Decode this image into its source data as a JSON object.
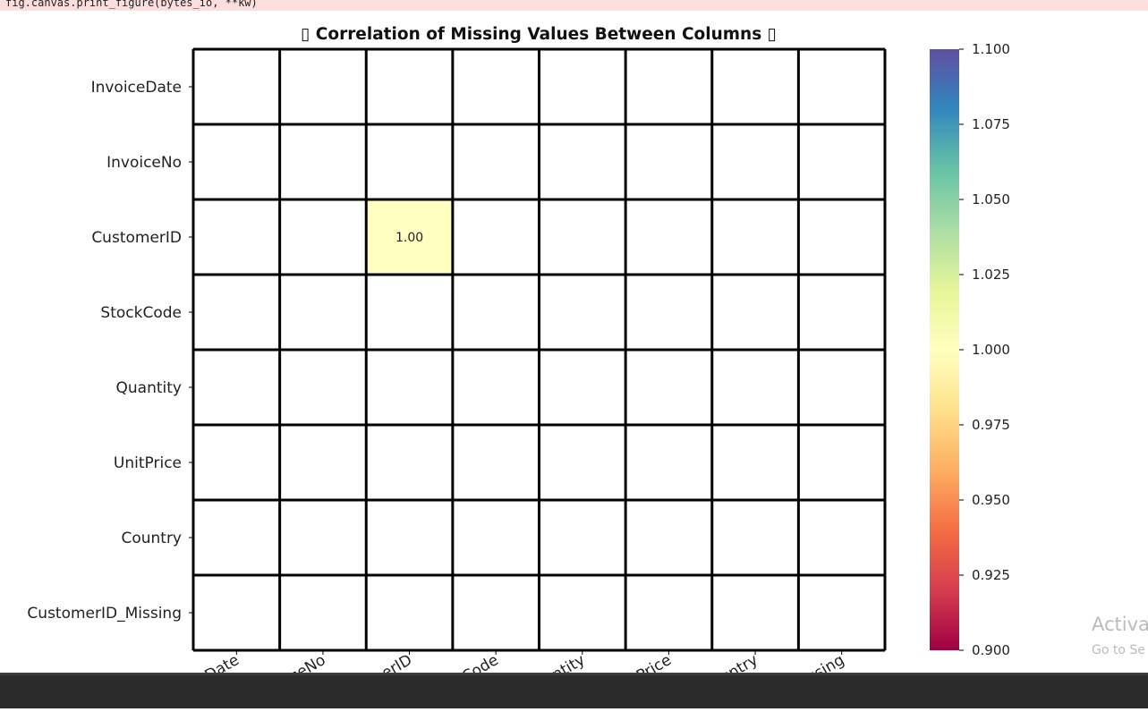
{
  "code_line": "fig.canvas.print_figure(bytes_io, **kw)",
  "watermark": {
    "title": "Activa",
    "subtitle": "Go to Se"
  },
  "chart_data": {
    "type": "heatmap",
    "title": "▯ Correlation of Missing Values Between Columns ▯",
    "x_categories": [
      "InvoiceDate",
      "InvoiceNo",
      "CustomerID",
      "StockCode",
      "Quantity",
      "UnitPrice",
      "Country",
      "CustomerID_Missing"
    ],
    "y_categories": [
      "InvoiceDate",
      "InvoiceNo",
      "CustomerID",
      "StockCode",
      "Quantity",
      "UnitPrice",
      "Country",
      "CustomerID_Missing"
    ],
    "values": [
      [
        null,
        null,
        null,
        null,
        null,
        null,
        null,
        null
      ],
      [
        null,
        null,
        null,
        null,
        null,
        null,
        null,
        null
      ],
      [
        null,
        null,
        1,
        null,
        null,
        null,
        null,
        null
      ],
      [
        null,
        null,
        null,
        null,
        null,
        null,
        null,
        null
      ],
      [
        null,
        null,
        null,
        null,
        null,
        null,
        null,
        null
      ],
      [
        null,
        null,
        null,
        null,
        null,
        null,
        null,
        null
      ],
      [
        null,
        null,
        null,
        null,
        null,
        null,
        null,
        null
      ],
      [
        null,
        null,
        null,
        null,
        null,
        null,
        null,
        null
      ]
    ],
    "value_labels": [
      [
        null,
        null,
        null,
        null,
        null,
        null,
        null,
        null
      ],
      [
        null,
        null,
        null,
        null,
        null,
        null,
        null,
        null
      ],
      [
        null,
        null,
        "1.00",
        null,
        null,
        null,
        null,
        null
      ],
      [
        null,
        null,
        null,
        null,
        null,
        null,
        null,
        null
      ],
      [
        null,
        null,
        null,
        null,
        null,
        null,
        null,
        null
      ],
      [
        null,
        null,
        null,
        null,
        null,
        null,
        null,
        null
      ],
      [
        null,
        null,
        null,
        null,
        null,
        null,
        null,
        null
      ],
      [
        null,
        null,
        null,
        null,
        null,
        null,
        null,
        null
      ]
    ],
    "colorscale": [
      "#9e0142",
      "#d53e4f",
      "#f46d43",
      "#fdae61",
      "#fee08b",
      "#ffffbf",
      "#e6f598",
      "#abdda4",
      "#66c2a5",
      "#3288bd",
      "#5e4fa2"
    ],
    "clim": [
      0.9,
      1.1
    ],
    "cticks": [
      {
        "value": 0.9,
        "label": "0.900"
      },
      {
        "value": 0.925,
        "label": "0.925"
      },
      {
        "value": 0.95,
        "label": "0.950"
      },
      {
        "value": 0.975,
        "label": "0.975"
      },
      {
        "value": 1.0,
        "label": "1.000"
      },
      {
        "value": 1.025,
        "label": "1.025"
      },
      {
        "value": 1.05,
        "label": "1.050"
      },
      {
        "value": 1.075,
        "label": "1.075"
      },
      {
        "value": 1.1,
        "label": "1.100"
      }
    ],
    "cell_border_color": "#000000"
  }
}
